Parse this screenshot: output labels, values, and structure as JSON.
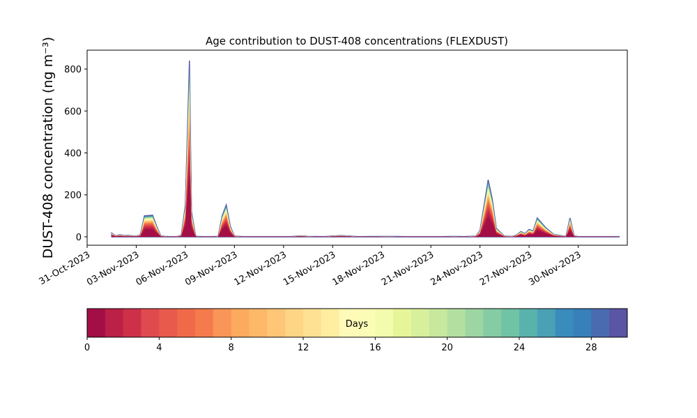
{
  "chart_data": {
    "type": "area",
    "title": "Age contribution to DUST-408 concentrations (FLEXDUST)",
    "ylabel": "DUST-408 concentration (ng m⁻³)",
    "xlabel": "",
    "x_range": [
      "2023-10-31",
      "2023-12-03"
    ],
    "ylim": [
      -40,
      890
    ],
    "y_ticks": [
      0,
      200,
      400,
      600,
      800
    ],
    "x_ticks": [
      "31-Oct-2023",
      "03-Nov-2023",
      "06-Nov-2023",
      "09-Nov-2023",
      "12-Nov-2023",
      "15-Nov-2023",
      "18-Nov-2023",
      "21-Nov-2023",
      "24-Nov-2023",
      "27-Nov-2023",
      "30-Nov-2023"
    ],
    "grid": false,
    "total_series": {
      "name": "total",
      "x": [
        "2023-11-01T12",
        "2023-11-01T18",
        "2023-11-02T00",
        "2023-11-02T06",
        "2023-11-02T12",
        "2023-11-03T00",
        "2023-11-03T06",
        "2023-11-03T12",
        "2023-11-04T00",
        "2023-11-04T06",
        "2023-11-04T12",
        "2023-11-04T18",
        "2023-11-05T00",
        "2023-11-05T12",
        "2023-11-05T18",
        "2023-11-06T00",
        "2023-11-06T06",
        "2023-11-06T09",
        "2023-11-06T15",
        "2023-11-06T18",
        "2023-11-07T00",
        "2023-11-07T12",
        "2023-11-08T00",
        "2023-11-08T06",
        "2023-11-08T12",
        "2023-11-08T18",
        "2023-11-09T00",
        "2023-11-09T12",
        "2023-11-10T12",
        "2023-11-12T12",
        "2023-11-13T00",
        "2023-11-13T12",
        "2023-11-14T12",
        "2023-11-15T12",
        "2023-11-16T12",
        "2023-11-18T12",
        "2023-11-19T12",
        "2023-11-21T12",
        "2023-11-22T12",
        "2023-11-23T00",
        "2023-11-23T18",
        "2023-11-24T00",
        "2023-11-24T06",
        "2023-11-24T12",
        "2023-11-24T18",
        "2023-11-25T00",
        "2023-11-25T12",
        "2023-11-26T00",
        "2023-11-26T06",
        "2023-11-26T12",
        "2023-11-26T18",
        "2023-11-27T00",
        "2023-11-27T06",
        "2023-11-27T12",
        "2023-11-28T00",
        "2023-11-28T12",
        "2023-11-29T06",
        "2023-11-29T12",
        "2023-11-29T18",
        "2023-11-30T00",
        "2023-11-30T12",
        "2023-12-01T12",
        "2023-12-02T12"
      ],
      "values": [
        18,
        5,
        10,
        6,
        7,
        3,
        10,
        100,
        103,
        50,
        5,
        2,
        1,
        1,
        8,
        150,
        840,
        120,
        5,
        2,
        1,
        1,
        2,
        100,
        152,
        50,
        3,
        1,
        1,
        1,
        5,
        2,
        1,
        6,
        1,
        2,
        1,
        1,
        2,
        1,
        3,
        30,
        150,
        272,
        180,
        40,
        3,
        2,
        10,
        25,
        15,
        35,
        28,
        90,
        45,
        12,
        2,
        90,
        5,
        1,
        1,
        1,
        1
      ]
    },
    "series": [
      {
        "name": "0-1 days",
        "color": "#a30e47"
      },
      {
        "name": "1-2 days",
        "color": "#bb2046"
      },
      {
        "name": "2-3 days",
        "color": "#cf3049"
      },
      {
        "name": "3-4 days",
        "color": "#df4a4e"
      },
      {
        "name": "4-5 days",
        "color": "#e85a4b"
      },
      {
        "name": "5-6 days",
        "color": "#f06a4a"
      },
      {
        "name": "6-7 days",
        "color": "#f57b4c"
      },
      {
        "name": "7-8 days",
        "color": "#f99556"
      },
      {
        "name": "8-9 days",
        "color": "#fcaa5e"
      },
      {
        "name": "9-10 days",
        "color": "#fdb869"
      },
      {
        "name": "10-11 days",
        "color": "#fec676"
      },
      {
        "name": "11-12 days",
        "color": "#fed485"
      },
      {
        "name": "12-13 days",
        "color": "#fee192"
      },
      {
        "name": "13-14 days",
        "color": "#ffeda0"
      },
      {
        "name": "14-15 days",
        "color": "#fffab7"
      },
      {
        "name": "15-16 days",
        "color": "#fbfdb7"
      },
      {
        "name": "16-17 days",
        "color": "#f3fbac"
      },
      {
        "name": "17-18 days",
        "color": "#e6f598"
      },
      {
        "name": "18-19 days",
        "color": "#d8ef9b"
      },
      {
        "name": "19-20 days",
        "color": "#c7e89d"
      },
      {
        "name": "20-21 days",
        "color": "#b3e0a0"
      },
      {
        "name": "21-22 days",
        "color": "#9dd5a3"
      },
      {
        "name": "22-23 days",
        "color": "#85cba4"
      },
      {
        "name": "23-24 days",
        "color": "#70c3a5"
      },
      {
        "name": "24-25 days",
        "color": "#5ab2ad"
      },
      {
        "name": "25-26 days",
        "color": "#4aa0b5"
      },
      {
        "name": "26-27 days",
        "color": "#3a8cbc"
      },
      {
        "name": "27-28 days",
        "color": "#3880b9"
      },
      {
        "name": "28-29 days",
        "color": "#4b6bb0"
      },
      {
        "name": "29-30 days",
        "color": "#5a55a5"
      }
    ],
    "colorbar": {
      "label": "Days",
      "range": [
        0,
        30
      ],
      "ticks": [
        0,
        4,
        8,
        12,
        16,
        20,
        24,
        28
      ],
      "orientation": "horizontal",
      "position": "bottom"
    }
  }
}
